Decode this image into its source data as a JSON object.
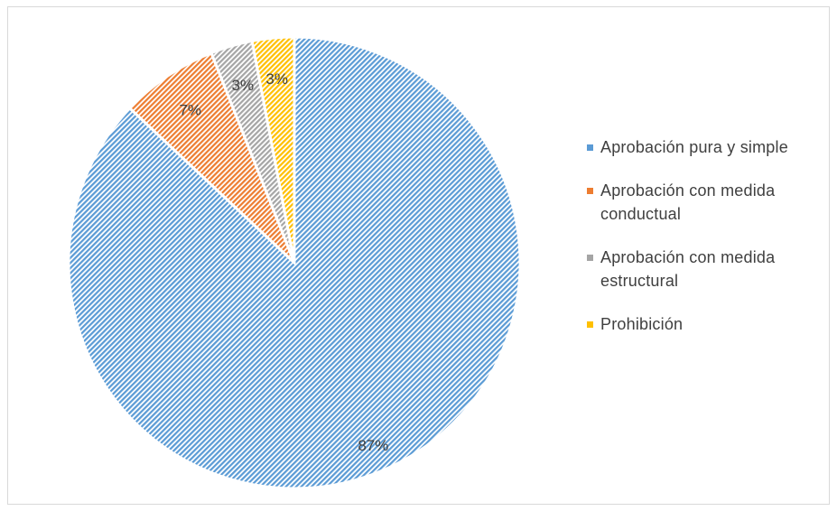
{
  "chart_data": {
    "type": "pie",
    "categories": [
      "Aprobación pura y simple",
      "Aprobación con medida conductual",
      "Aprobación con medida estructural",
      "Prohibición"
    ],
    "values": [
      87,
      7,
      3,
      3
    ],
    "data_labels": [
      "87%",
      "7%",
      "3%",
      "3%"
    ],
    "colors": [
      "#5b9bd5",
      "#ed7d31",
      "#a5a5a5",
      "#ffc000"
    ],
    "fill_pattern": "diagonal-hatch",
    "legend_position": "right",
    "title": ""
  }
}
